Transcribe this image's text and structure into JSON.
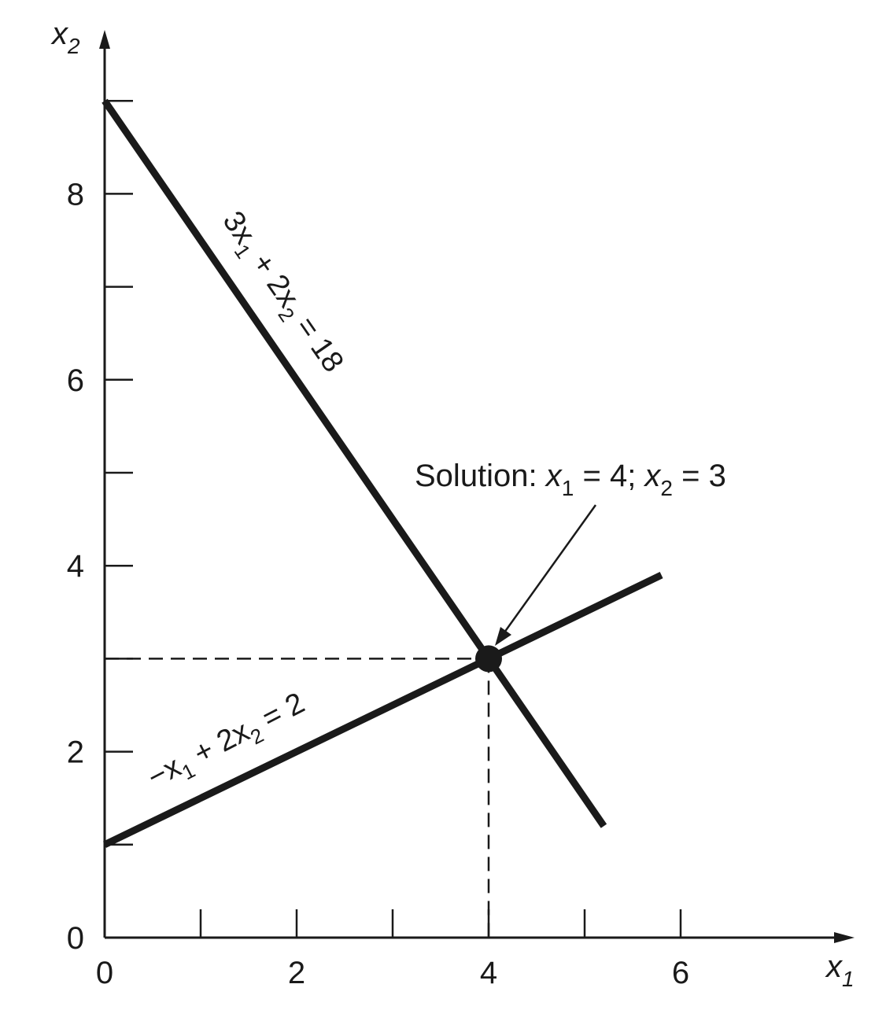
{
  "chart_data": {
    "type": "line",
    "xlim": [
      0,
      7.6
    ],
    "ylim": [
      0,
      9.2
    ],
    "x_ticks": [
      1,
      2,
      3,
      4,
      5,
      6
    ],
    "y_ticks": [
      1,
      2,
      3,
      4,
      5,
      6,
      7,
      8,
      9
    ],
    "x_tick_labels": [
      {
        "value": 0,
        "label": "0"
      },
      {
        "value": 2,
        "label": "2"
      },
      {
        "value": 4,
        "label": "4"
      },
      {
        "value": 6,
        "label": "6"
      }
    ],
    "y_tick_labels": [
      {
        "value": 0,
        "label": "0"
      },
      {
        "value": 2,
        "label": "2"
      },
      {
        "value": 4,
        "label": "4"
      },
      {
        "value": 6,
        "label": "6"
      },
      {
        "value": 8,
        "label": "8"
      }
    ],
    "xlabel": {
      "var": "x",
      "sub": "1"
    },
    "ylabel": {
      "var": "x",
      "sub": "2"
    },
    "series": [
      {
        "x": [
          0,
          5.2
        ],
        "y": [
          9,
          1.2
        ],
        "label": "3x₁ + 2x₂ = 18"
      },
      {
        "x": [
          0,
          5.8
        ],
        "y": [
          1,
          3.9
        ],
        "label": "−x₁ + 2x₂ = 2"
      }
    ],
    "solution": {
      "x": 4,
      "y": 3,
      "label_prefix": "Solution: ",
      "x_var": "x",
      "x_sub": "1",
      "x_eq": " = 4; ",
      "y_var": "x",
      "y_sub": "2",
      "y_eq": " = 3"
    },
    "grid": false,
    "legend": "none"
  },
  "text": {
    "line1_label": {
      "p1": "3x",
      "s1": "1",
      "p2": " + 2x",
      "s2": "2",
      "p3": " = 18"
    },
    "line2_label": {
      "p1": "−x",
      "s1": "1",
      "p2": " + 2x",
      "s2": "2",
      "p3": " = 2"
    }
  }
}
